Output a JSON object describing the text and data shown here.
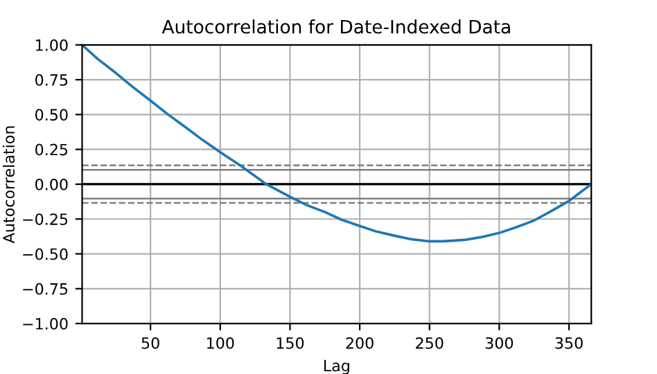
{
  "chart_data": {
    "type": "line",
    "title": "Autocorrelation for Date-Indexed Data",
    "xlabel": "Lag",
    "ylabel": "Autocorrelation",
    "x": [
      1,
      12,
      25,
      37,
      50,
      62,
      75,
      87,
      100,
      115,
      133,
      150,
      162,
      175,
      187,
      200,
      212,
      225,
      237,
      250,
      260,
      275,
      287,
      300,
      312,
      325,
      337,
      350,
      358,
      366
    ],
    "series": [
      {
        "color": "#1f77b4",
        "values": [
          1.0,
          0.9,
          0.8,
          0.7,
          0.6,
          0.505,
          0.41,
          0.32,
          0.23,
          0.13,
          0.0,
          -0.09,
          -0.15,
          -0.2,
          -0.255,
          -0.3,
          -0.34,
          -0.37,
          -0.395,
          -0.41,
          -0.41,
          -0.4,
          -0.38,
          -0.35,
          -0.31,
          -0.26,
          -0.195,
          -0.12,
          -0.06,
          0.0
        ]
      }
    ],
    "xlim": [
      1,
      366
    ],
    "xticks": [
      50,
      100,
      150,
      200,
      250,
      300,
      350
    ],
    "ylim": [
      -1.0,
      1.0
    ],
    "yticks": [
      {
        "value": -1.0,
        "label": "−1.00"
      },
      {
        "value": -0.75,
        "label": "−0.75"
      },
      {
        "value": -0.5,
        "label": "−0.50"
      },
      {
        "value": -0.25,
        "label": "−0.25"
      },
      {
        "value": 0.0,
        "label": "0.00"
      },
      {
        "value": 0.25,
        "label": "0.25"
      },
      {
        "value": 0.5,
        "label": "0.50"
      },
      {
        "value": 0.75,
        "label": "0.75"
      },
      {
        "value": 1.0,
        "label": "1.00"
      }
    ],
    "ref_lines": [
      {
        "axis": "y",
        "value": 0.135,
        "color": "#808080",
        "line_style": "dashed"
      },
      {
        "axis": "y",
        "value": 0.103,
        "color": "#808080",
        "line_style": "solid"
      },
      {
        "axis": "y",
        "value": 0,
        "color": "#000000",
        "line_style": "solid"
      },
      {
        "axis": "y",
        "value": -0.103,
        "color": "#808080",
        "line_style": "solid"
      },
      {
        "axis": "y",
        "value": -0.135,
        "color": "#808080",
        "line_style": "dashed"
      }
    ],
    "grid": true,
    "legend": false,
    "marker": "none",
    "line_style": "solid"
  }
}
